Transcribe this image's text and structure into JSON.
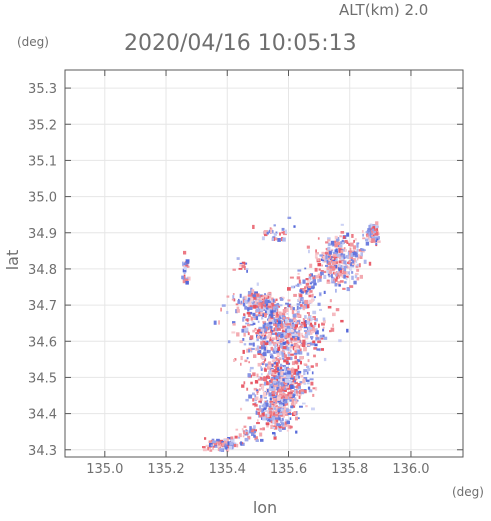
{
  "header": {
    "alt_label": "ALT(km) 2.0",
    "timestamp": "2020/04/16 10:05:13"
  },
  "colors": {
    "text": "#6f6f6f",
    "axis": "#5a5a5a",
    "grid": "#e6e6e6",
    "positive": "#e44d5c",
    "negative": "#4f63d8"
  },
  "chart_data": {
    "type": "heatmap",
    "title": "2020/04/16 10:05:13",
    "xlabel": "lon",
    "ylabel": "lat",
    "x_unit": "(deg)",
    "y_unit": "(deg)",
    "xlim": [
      134.87,
      136.17
    ],
    "ylim": [
      34.28,
      35.35
    ],
    "xticks": [
      135.0,
      135.2,
      135.4,
      135.6,
      135.8,
      136.0
    ],
    "yticks": [
      34.3,
      34.4,
      34.5,
      34.6,
      34.7,
      34.8,
      34.9,
      35.0,
      35.1,
      35.2,
      35.3
    ],
    "xtick_labels": [
      "135.0",
      "135.2",
      "135.4",
      "135.6",
      "135.8",
      "136.0"
    ],
    "ytick_labels": [
      "34.3",
      "34.4",
      "34.5",
      "34.6",
      "34.7",
      "34.8",
      "34.9",
      "35.0",
      "35.1",
      "35.2",
      "35.3"
    ],
    "grid": true,
    "value_range": [
      -1,
      1
    ],
    "clusters": [
      {
        "lon": 135.58,
        "lat": 34.63,
        "lon_spread": 0.12,
        "lat_spread": 0.08,
        "density": 0.95
      },
      {
        "lon": 135.57,
        "lat": 34.49,
        "lon_spread": 0.08,
        "lat_spread": 0.06,
        "density": 0.9
      },
      {
        "lon": 135.55,
        "lat": 34.41,
        "lon_spread": 0.06,
        "lat_spread": 0.05,
        "density": 0.75
      },
      {
        "lon": 135.5,
        "lat": 34.71,
        "lon_spread": 0.07,
        "lat_spread": 0.03,
        "density": 0.7
      },
      {
        "lon": 135.76,
        "lat": 34.83,
        "lon_spread": 0.07,
        "lat_spread": 0.06,
        "density": 0.8
      },
      {
        "lon": 135.87,
        "lat": 34.9,
        "lon_spread": 0.02,
        "lat_spread": 0.02,
        "density": 0.85
      },
      {
        "lon": 135.66,
        "lat": 34.75,
        "lon_spread": 0.05,
        "lat_spread": 0.04,
        "density": 0.45
      },
      {
        "lon": 135.55,
        "lat": 34.91,
        "lon_spread": 0.05,
        "lat_spread": 0.03,
        "density": 0.35
      },
      {
        "lon": 135.38,
        "lat": 34.32,
        "lon_spread": 0.05,
        "lat_spread": 0.015,
        "density": 0.65
      },
      {
        "lon": 135.45,
        "lat": 34.81,
        "lon_spread": 0.03,
        "lat_spread": 0.02,
        "density": 0.3
      },
      {
        "lon": 135.26,
        "lat": 34.8,
        "lon_spread": 0.01,
        "lat_spread": 0.04,
        "density": 0.4
      },
      {
        "lon": 135.47,
        "lat": 34.35,
        "lon_spread": 0.03,
        "lat_spread": 0.02,
        "density": 0.45
      }
    ]
  }
}
